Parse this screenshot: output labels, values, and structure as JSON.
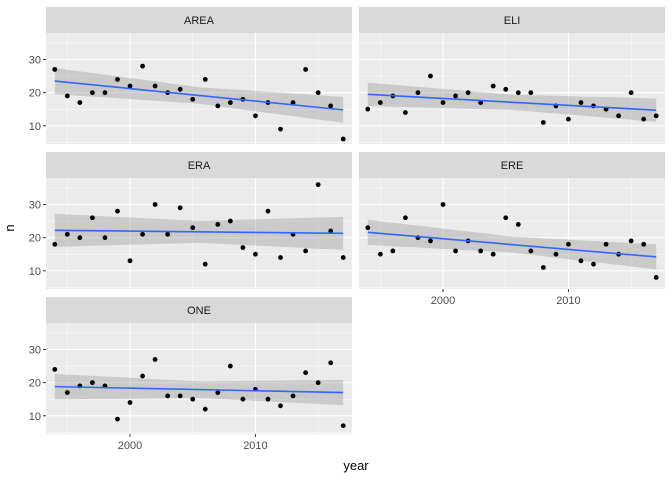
{
  "chart_data": {
    "type": "scatter",
    "facet_by": "panel",
    "xlabel": "year",
    "ylabel": "n",
    "xlim": [
      1993.3,
      2017.7
    ],
    "ylim": [
      4.5,
      38
    ],
    "x_ticks": [
      2000,
      2010
    ],
    "y_ticks": [
      10,
      20,
      30
    ],
    "grid": true,
    "colors": {
      "panel_bg": "#ebebeb",
      "strip_bg": "#d9d9d9",
      "grid_major": "#ffffff",
      "point": "#000000",
      "fit_line": "#3366ff",
      "ribbon": "#999999",
      "axis_text": "#4d4d4d",
      "axis_title": "#000000",
      "strip_text": "#1a1a1a"
    },
    "panels": [
      {
        "name": "AREA",
        "x": [
          1994,
          1995,
          1996,
          1997,
          1998,
          1999,
          2000,
          2001,
          2002,
          2003,
          2004,
          2005,
          2006,
          2007,
          2008,
          2009,
          2010,
          2011,
          2012,
          2013,
          2014,
          2015,
          2016,
          2017
        ],
        "y": [
          27,
          19,
          17,
          20,
          20,
          24,
          22,
          28,
          22,
          20,
          21,
          18,
          24,
          16,
          17,
          18,
          13,
          17,
          9,
          17,
          27,
          20,
          16,
          6
        ],
        "fit": [
          23.5,
          14.8
        ],
        "band": [
          2.5,
          2.6
        ]
      },
      {
        "name": "ELI",
        "x": [
          1994,
          1995,
          1996,
          1997,
          1998,
          1999,
          2000,
          2001,
          2002,
          2003,
          2004,
          2005,
          2006,
          2007,
          2008,
          2009,
          2010,
          2011,
          2012,
          2013,
          2014,
          2015,
          2016,
          2017
        ],
        "y": [
          15,
          17,
          19,
          14,
          20,
          25,
          17,
          19,
          20,
          17,
          22,
          21,
          20,
          20,
          11,
          16,
          12,
          17,
          16,
          15,
          13,
          20,
          12,
          13
        ],
        "fit": [
          19.5,
          14.7
        ],
        "band": [
          2.3,
          2.3
        ]
      },
      {
        "name": "ERA",
        "x": [
          1994,
          1995,
          1996,
          1997,
          1998,
          1999,
          2000,
          2001,
          2002,
          2003,
          2004,
          2005,
          2006,
          2007,
          2008,
          2009,
          2010,
          2011,
          2012,
          2013,
          2014,
          2015,
          2016,
          2017
        ],
        "y": [
          18,
          21,
          20,
          26,
          20,
          28,
          13,
          21,
          30,
          21,
          29,
          23,
          12,
          24,
          25,
          17,
          15,
          28,
          14,
          21,
          16,
          36,
          22,
          14
        ],
        "fit": [
          22.2,
          21.3
        ],
        "band": [
          3.3,
          3.3
        ]
      },
      {
        "name": "ERE",
        "x": [
          1994,
          1995,
          1996,
          1997,
          1998,
          1999,
          2000,
          2001,
          2002,
          2003,
          2004,
          2005,
          2006,
          2007,
          2008,
          2009,
          2010,
          2011,
          2012,
          2013,
          2014,
          2015,
          2016,
          2017
        ],
        "y": [
          23,
          15,
          16,
          26,
          20,
          19,
          30,
          16,
          19,
          16,
          15,
          26,
          24,
          16,
          11,
          15,
          18,
          13,
          12,
          18,
          15,
          19,
          18,
          8
        ],
        "fit": [
          21.6,
          14.2
        ],
        "band": [
          2.5,
          2.4
        ]
      },
      {
        "name": "ONE",
        "x": [
          1994,
          1995,
          1996,
          1997,
          1998,
          1999,
          2000,
          2001,
          2002,
          2003,
          2004,
          2005,
          2006,
          2007,
          2008,
          2009,
          2010,
          2011,
          2012,
          2013,
          2014,
          2015,
          2016,
          2017
        ],
        "y": [
          24,
          17,
          19,
          20,
          19,
          9,
          14,
          22,
          27,
          16,
          16,
          15,
          12,
          17,
          25,
          15,
          18,
          15,
          13,
          16,
          23,
          20,
          26,
          7
        ],
        "fit": [
          18.8,
          17.0
        ],
        "band": [
          2.5,
          2.5
        ]
      }
    ]
  }
}
